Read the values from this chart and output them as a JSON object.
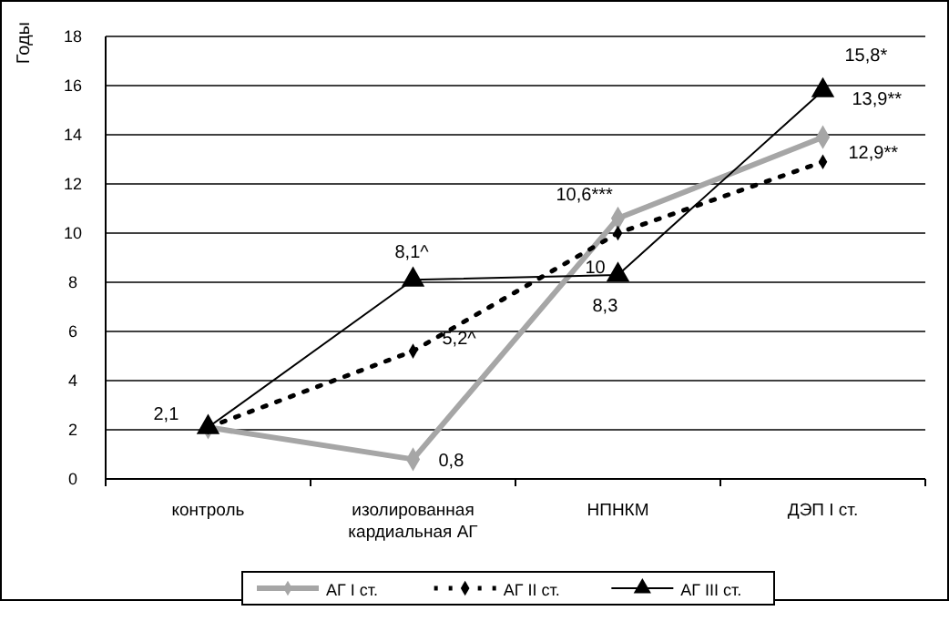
{
  "chart_data": {
    "type": "line",
    "ylabel": "Годы",
    "categories": [
      "контроль",
      "изолированная кардиальная АГ",
      "НПНКМ",
      "ДЭП I ст."
    ],
    "series": [
      {
        "name": "АГ I ст.",
        "color": "#a6a6a6",
        "values": [
          2.1,
          0.8,
          10.6,
          13.9
        ],
        "marker": "diamond",
        "line_style": "solid",
        "value_labels": [
          "2,1",
          "0,8",
          "10,6***",
          "13,9**"
        ]
      },
      {
        "name": "АГ II ст.",
        "color": "#000000",
        "values": [
          2.1,
          5.2,
          10,
          12.9
        ],
        "marker": "diamond",
        "line_style": "dotted",
        "value_labels": [
          null,
          "5,2^",
          "10",
          "12,9**"
        ]
      },
      {
        "name": "АГ III ст.",
        "color": "#000000",
        "values": [
          2.1,
          8.1,
          8.3,
          15.8
        ],
        "marker": "triangle",
        "line_style": "solid",
        "value_labels": [
          null,
          "8,1^",
          "8,3",
          "15,8*"
        ]
      }
    ],
    "ylim": [
      0,
      18
    ],
    "yticks": [
      0,
      2,
      4,
      6,
      8,
      10,
      12,
      14,
      16,
      18
    ],
    "grid": "y",
    "legend": "bottom"
  }
}
